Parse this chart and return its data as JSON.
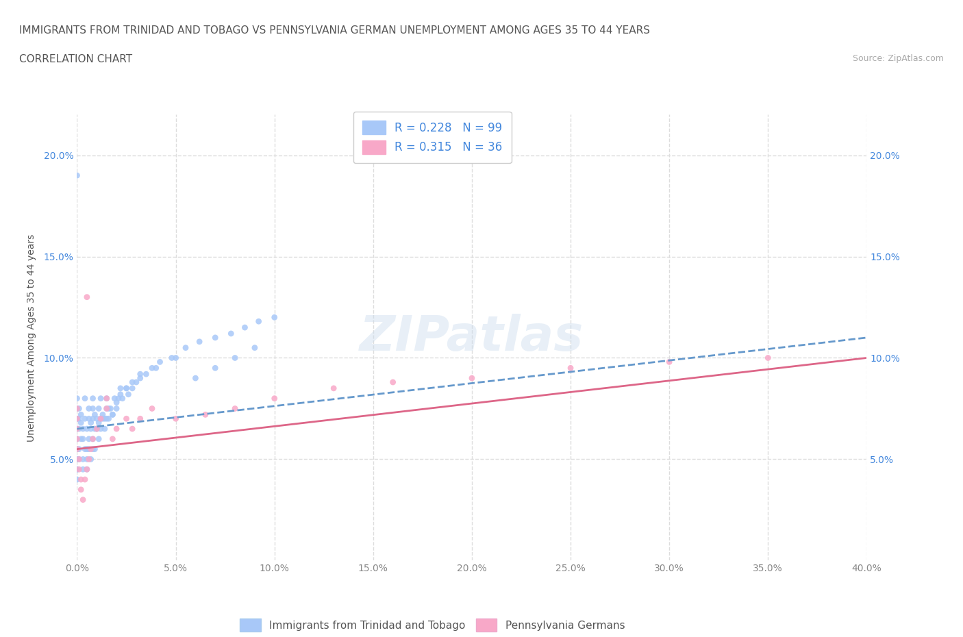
{
  "title_line1": "IMMIGRANTS FROM TRINIDAD AND TOBAGO VS PENNSYLVANIA GERMAN UNEMPLOYMENT AMONG AGES 35 TO 44 YEARS",
  "title_line2": "CORRELATION CHART",
  "source_text": "Source: ZipAtlas.com",
  "xlabel": "",
  "ylabel": "Unemployment Among Ages 35 to 44 years",
  "xlim": [
    0.0,
    0.4
  ],
  "ylim": [
    0.0,
    0.22
  ],
  "xtick_labels": [
    "0.0%",
    "5.0%",
    "10.0%",
    "15.0%",
    "20.0%",
    "25.0%",
    "30.0%",
    "35.0%",
    "40.0%"
  ],
  "xtick_vals": [
    0.0,
    0.05,
    0.1,
    0.15,
    0.2,
    0.25,
    0.3,
    0.35,
    0.4
  ],
  "ytick_labels": [
    "5.0%",
    "10.0%",
    "15.0%",
    "20.0%"
  ],
  "ytick_vals": [
    0.05,
    0.1,
    0.15,
    0.2
  ],
  "watermark": "ZIPatlas",
  "legend_labels": [
    "Immigrants from Trinidad and Tobago",
    "Pennsylvania Germans"
  ],
  "R1": 0.228,
  "N1": 99,
  "R2": 0.315,
  "N2": 36,
  "color_blue": "#a8c8f8",
  "color_pink": "#f8a8c8",
  "color_blue_text": "#4488dd",
  "trendline1_color": "#6699cc",
  "trendline2_color": "#dd6688",
  "grid_color": "#dddddd",
  "scatter1_x": [
    0.0,
    0.0,
    0.0,
    0.0,
    0.0,
    0.0,
    0.0,
    0.0,
    0.0,
    0.0,
    0.001,
    0.001,
    0.001,
    0.002,
    0.002,
    0.003,
    0.003,
    0.004,
    0.004,
    0.005,
    0.005,
    0.006,
    0.006,
    0.007,
    0.007,
    0.008,
    0.008,
    0.008,
    0.009,
    0.009,
    0.01,
    0.01,
    0.011,
    0.011,
    0.012,
    0.012,
    0.013,
    0.014,
    0.015,
    0.015,
    0.016,
    0.017,
    0.018,
    0.019,
    0.02,
    0.021,
    0.022,
    0.023,
    0.025,
    0.026,
    0.028,
    0.03,
    0.032,
    0.035,
    0.04,
    0.05,
    0.06,
    0.07,
    0.08,
    0.09,
    0.0,
    0.0,
    0.001,
    0.001,
    0.002,
    0.003,
    0.003,
    0.004,
    0.005,
    0.005,
    0.006,
    0.006,
    0.007,
    0.008,
    0.008,
    0.009,
    0.01,
    0.011,
    0.012,
    0.013,
    0.014,
    0.015,
    0.016,
    0.018,
    0.02,
    0.022,
    0.025,
    0.028,
    0.032,
    0.038,
    0.042,
    0.048,
    0.055,
    0.062,
    0.07,
    0.078,
    0.085,
    0.092,
    0.1
  ],
  "scatter1_y": [
    0.06,
    0.065,
    0.07,
    0.075,
    0.055,
    0.05,
    0.045,
    0.04,
    0.07,
    0.08,
    0.065,
    0.07,
    0.075,
    0.068,
    0.072,
    0.06,
    0.065,
    0.07,
    0.08,
    0.055,
    0.065,
    0.07,
    0.075,
    0.065,
    0.068,
    0.07,
    0.075,
    0.08,
    0.065,
    0.072,
    0.065,
    0.07,
    0.068,
    0.075,
    0.07,
    0.08,
    0.072,
    0.07,
    0.075,
    0.08,
    0.07,
    0.075,
    0.072,
    0.08,
    0.075,
    0.08,
    0.085,
    0.08,
    0.085,
    0.082,
    0.085,
    0.088,
    0.09,
    0.092,
    0.095,
    0.1,
    0.09,
    0.095,
    0.1,
    0.105,
    0.19,
    0.045,
    0.05,
    0.055,
    0.06,
    0.045,
    0.05,
    0.055,
    0.045,
    0.05,
    0.055,
    0.06,
    0.05,
    0.055,
    0.06,
    0.055,
    0.065,
    0.06,
    0.065,
    0.07,
    0.065,
    0.07,
    0.075,
    0.072,
    0.078,
    0.082,
    0.085,
    0.088,
    0.092,
    0.095,
    0.098,
    0.1,
    0.105,
    0.108,
    0.11,
    0.112,
    0.115,
    0.118,
    0.12
  ],
  "scatter2_x": [
    0.0,
    0.0,
    0.0,
    0.0,
    0.0,
    0.001,
    0.001,
    0.002,
    0.002,
    0.003,
    0.004,
    0.005,
    0.006,
    0.007,
    0.008,
    0.01,
    0.012,
    0.015,
    0.018,
    0.02,
    0.025,
    0.028,
    0.032,
    0.038,
    0.05,
    0.065,
    0.08,
    0.1,
    0.13,
    0.16,
    0.2,
    0.25,
    0.3,
    0.35,
    0.005,
    0.015
  ],
  "scatter2_y": [
    0.055,
    0.06,
    0.065,
    0.07,
    0.075,
    0.05,
    0.045,
    0.04,
    0.035,
    0.03,
    0.04,
    0.045,
    0.05,
    0.055,
    0.06,
    0.065,
    0.07,
    0.075,
    0.06,
    0.065,
    0.07,
    0.065,
    0.07,
    0.075,
    0.07,
    0.072,
    0.075,
    0.08,
    0.085,
    0.088,
    0.09,
    0.095,
    0.098,
    0.1,
    0.13,
    0.08
  ],
  "trendline1_x": [
    0.0,
    0.4
  ],
  "trendline1_y": [
    0.065,
    0.11
  ],
  "trendline2_x": [
    0.0,
    0.4
  ],
  "trendline2_y": [
    0.055,
    0.1
  ]
}
